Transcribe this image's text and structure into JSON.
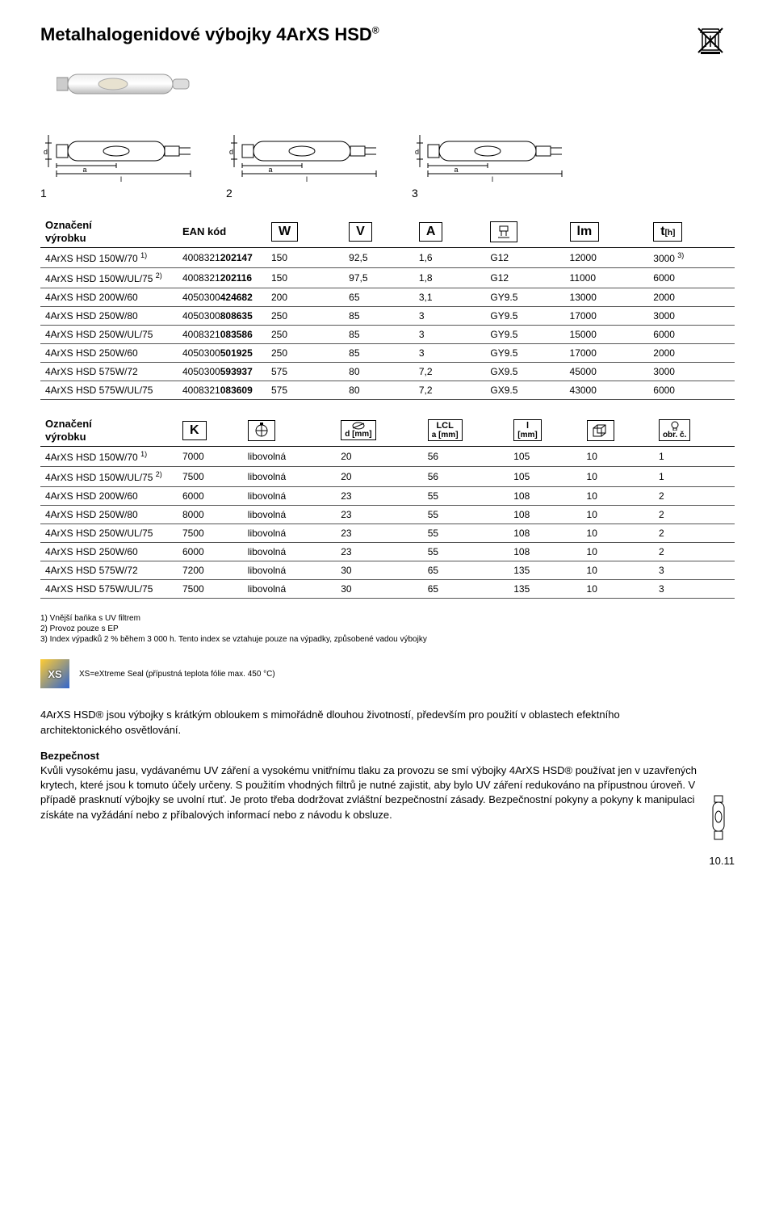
{
  "title": "Metalhalogenidové výbojky 4ArXS HSD",
  "title_sup": "®",
  "diagram_numbers": [
    "1",
    "2",
    "3"
  ],
  "table1": {
    "label_col": "Označení\nvýrobku",
    "ean_label": "EAN kód",
    "headers": [
      "W",
      "V",
      "A",
      "",
      "lm",
      ""
    ],
    "t_header_main": "t",
    "t_header_sub": "[h]",
    "rows": [
      {
        "name": "4ArXS HSD 150W/70",
        "fn": "1)",
        "ean_pre": "4008321",
        "ean_b": "202147",
        "w": "150",
        "v": "92,5",
        "a": "1,6",
        "base": "G12",
        "lm": "12000",
        "t": "3000",
        "t_fn": "3)"
      },
      {
        "name": "4ArXS HSD 150W/UL/75",
        "fn": "2)",
        "ean_pre": "4008321",
        "ean_b": "202116",
        "w": "150",
        "v": "97,5",
        "a": "1,8",
        "base": "G12",
        "lm": "11000",
        "t": "6000",
        "t_fn": ""
      },
      {
        "name": "4ArXS HSD 200W/60",
        "fn": "",
        "ean_pre": "4050300",
        "ean_b": "424682",
        "w": "200",
        "v": "65",
        "a": "3,1",
        "base": "GY9.5",
        "lm": "13000",
        "t": "2000",
        "t_fn": ""
      },
      {
        "name": "4ArXS HSD 250W/80",
        "fn": "",
        "ean_pre": "4050300",
        "ean_b": "808635",
        "w": "250",
        "v": "85",
        "a": "3",
        "base": "GY9.5",
        "lm": "17000",
        "t": "3000",
        "t_fn": ""
      },
      {
        "name": "4ArXS HSD 250W/UL/75",
        "fn": "",
        "ean_pre": "4008321",
        "ean_b": "083586",
        "w": "250",
        "v": "85",
        "a": "3",
        "base": "GY9.5",
        "lm": "15000",
        "t": "6000",
        "t_fn": ""
      },
      {
        "name": "4ArXS HSD 250W/60",
        "fn": "",
        "ean_pre": "4050300",
        "ean_b": "501925",
        "w": "250",
        "v": "85",
        "a": "3",
        "base": "GY9.5",
        "lm": "17000",
        "t": "2000",
        "t_fn": ""
      },
      {
        "name": "4ArXS HSD 575W/72",
        "fn": "",
        "ean_pre": "4050300",
        "ean_b": "593937",
        "w": "575",
        "v": "80",
        "a": "7,2",
        "base": "GX9.5",
        "lm": "45000",
        "t": "3000",
        "t_fn": ""
      },
      {
        "name": "4ArXS HSD 575W/UL/75",
        "fn": "",
        "ean_pre": "4008321",
        "ean_b": "083609",
        "w": "575",
        "v": "80",
        "a": "7,2",
        "base": "GX9.5",
        "lm": "43000",
        "t": "6000",
        "t_fn": ""
      }
    ]
  },
  "table2": {
    "label_col": "Označení\nvýrobku",
    "k_header": "K",
    "d_header_top": "",
    "d_header_sub": "d [mm]",
    "lcl_header_top": "LCL",
    "lcl_header_sub": "a [mm]",
    "l_header_top": "l",
    "l_header_sub": "[mm]",
    "obr_header": "obr. č.",
    "rows": [
      {
        "name": "4ArXS HSD 150W/70",
        "fn": "1)",
        "k": "7000",
        "pos": "libovolná",
        "d": "20",
        "lcl": "56",
        "l": "105",
        "pack": "10",
        "obr": "1"
      },
      {
        "name": "4ArXS HSD 150W/UL/75",
        "fn": "2)",
        "k": "7500",
        "pos": "libovolná",
        "d": "20",
        "lcl": "56",
        "l": "105",
        "pack": "10",
        "obr": "1"
      },
      {
        "name": "4ArXS HSD 200W/60",
        "fn": "",
        "k": "6000",
        "pos": "libovolná",
        "d": "23",
        "lcl": "55",
        "l": "108",
        "pack": "10",
        "obr": "2"
      },
      {
        "name": "4ArXS HSD 250W/80",
        "fn": "",
        "k": "8000",
        "pos": "libovolná",
        "d": "23",
        "lcl": "55",
        "l": "108",
        "pack": "10",
        "obr": "2"
      },
      {
        "name": "4ArXS HSD 250W/UL/75",
        "fn": "",
        "k": "7500",
        "pos": "libovolná",
        "d": "23",
        "lcl": "55",
        "l": "108",
        "pack": "10",
        "obr": "2"
      },
      {
        "name": "4ArXS HSD 250W/60",
        "fn": "",
        "k": "6000",
        "pos": "libovolná",
        "d": "23",
        "lcl": "55",
        "l": "108",
        "pack": "10",
        "obr": "2"
      },
      {
        "name": "4ArXS HSD 575W/72",
        "fn": "",
        "k": "7200",
        "pos": "libovolná",
        "d": "30",
        "lcl": "65",
        "l": "135",
        "pack": "10",
        "obr": "3"
      },
      {
        "name": "4ArXS HSD 575W/UL/75",
        "fn": "",
        "k": "7500",
        "pos": "libovolná",
        "d": "30",
        "lcl": "65",
        "l": "135",
        "pack": "10",
        "obr": "3"
      }
    ]
  },
  "footnotes": [
    "1) Vnější baňka s UV filtrem",
    "2) Provoz pouze s EP",
    "3) Index výpadků 2 % během 3 000 h. Tento index se vztahuje pouze na výpadky, způsobené vadou výbojky"
  ],
  "xs_note": "XS=eXtreme Seal (přípustná teplota fólie max. 450 °C)",
  "xs_badge_text": "XS",
  "intro": "4ArXS HSD® jsou výbojky s krátkým obloukem s mimořádně dlouhou životností, především pro použití v oblastech efektního architektonického osvětlování.",
  "safety_head": "Bezpečnost",
  "safety_text": "Kvůli vysokému jasu, vydávanému UV záření a vysokému vnitřnímu tlaku za provozu se smí výbojky 4ArXS HSD® používat jen v uzavřených krytech, které jsou k tomuto účely určeny. S použitím vhodných filtrů je nutné zajistit, aby bylo UV záření redukováno na přípustnou úroveň. V případě prasknutí výbojky se uvolní rtuť. Je proto třeba dodržovat zvláštní bezpečnostní zásady. Bezpečnostní pokyny a pokyny k manipulaci získáte na vyžádání nebo z příbalových informací nebo z návodu k obsluze.",
  "page_number": "10.11"
}
